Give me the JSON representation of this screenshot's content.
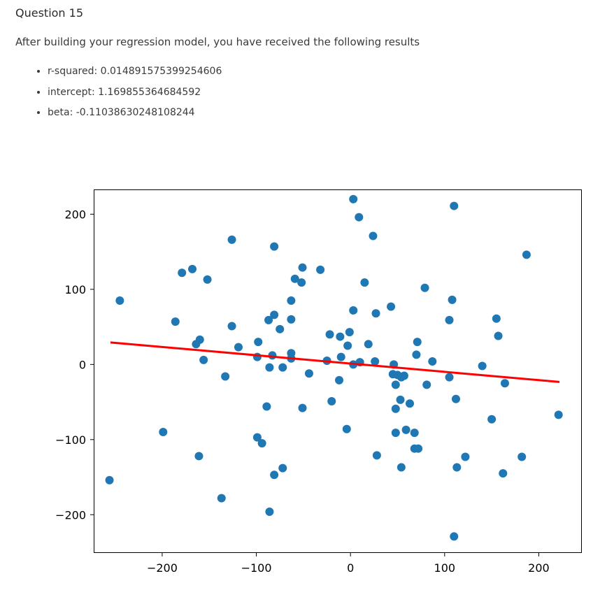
{
  "question": {
    "title": "Question 15",
    "text": "After building your regression model, you have received the following results",
    "results": [
      "r-squared: 0.014891575399254606",
      "intercept: 1.169855364684592",
      "beta: -0.11038630248108244"
    ]
  },
  "chart_data": {
    "type": "scatter",
    "title": "",
    "xlabel": "",
    "ylabel": "",
    "xlim": [
      -272,
      245
    ],
    "ylim": [
      -250,
      232
    ],
    "xticks": [
      -200,
      -100,
      0,
      100,
      200
    ],
    "yticks": [
      -200,
      -100,
      0,
      100,
      200
    ],
    "xtick_labels": [
      "−200",
      "−100",
      "0",
      "100",
      "200"
    ],
    "ytick_labels": [
      "−200",
      "−100",
      "0",
      "100",
      "200"
    ],
    "grid": false,
    "point_color": "#1f77b4",
    "line_color": "#ff0000",
    "points": [
      [
        3,
        220
      ],
      [
        110,
        211
      ],
      [
        9,
        196
      ],
      [
        -126,
        166
      ],
      [
        24,
        171
      ],
      [
        -81,
        157
      ],
      [
        187,
        146
      ],
      [
        -51,
        129
      ],
      [
        -32,
        126
      ],
      [
        -168,
        127
      ],
      [
        -179,
        122
      ],
      [
        -152,
        113
      ],
      [
        -59,
        114
      ],
      [
        -52,
        109
      ],
      [
        15,
        109
      ],
      [
        79,
        102
      ],
      [
        -245,
        85
      ],
      [
        -63,
        85
      ],
      [
        108,
        86
      ],
      [
        43,
        77
      ],
      [
        3,
        72
      ],
      [
        27,
        68
      ],
      [
        -81,
        66
      ],
      [
        -87,
        59
      ],
      [
        -63,
        60
      ],
      [
        105,
        59
      ],
      [
        155,
        61
      ],
      [
        -186,
        57
      ],
      [
        -126,
        51
      ],
      [
        -75,
        47
      ],
      [
        -22,
        40
      ],
      [
        -11,
        37
      ],
      [
        -1,
        43
      ],
      [
        157,
        38
      ],
      [
        -160,
        33
      ],
      [
        -164,
        27
      ],
      [
        -98,
        30
      ],
      [
        -3,
        25
      ],
      [
        19,
        27
      ],
      [
        71,
        30
      ],
      [
        -119,
        23
      ],
      [
        -63,
        15
      ],
      [
        -83,
        12
      ],
      [
        -99,
        10
      ],
      [
        -10,
        10
      ],
      [
        -63,
        8
      ],
      [
        70,
        13
      ],
      [
        -156,
        6
      ],
      [
        -25,
        5
      ],
      [
        10,
        3
      ],
      [
        3,
        0
      ],
      [
        26,
        4
      ],
      [
        46,
        0
      ],
      [
        87,
        4
      ],
      [
        140,
        -2
      ],
      [
        -86,
        -4
      ],
      [
        -72,
        -4
      ],
      [
        -44,
        -12
      ],
      [
        45,
        -13
      ],
      [
        50,
        -14
      ],
      [
        54,
        -17
      ],
      [
        57,
        -15
      ],
      [
        105,
        -17
      ],
      [
        -133,
        -16
      ],
      [
        -12,
        -21
      ],
      [
        48,
        -27
      ],
      [
        81,
        -27
      ],
      [
        164,
        -25
      ],
      [
        -20,
        -49
      ],
      [
        53,
        -47
      ],
      [
        63,
        -52
      ],
      [
        112,
        -46
      ],
      [
        -89,
        -56
      ],
      [
        -51,
        -58
      ],
      [
        48,
        -59
      ],
      [
        150,
        -73
      ],
      [
        221,
        -67
      ],
      [
        -199,
        -90
      ],
      [
        -4,
        -86
      ],
      [
        59,
        -87
      ],
      [
        48,
        -91
      ],
      [
        68,
        -91
      ],
      [
        -99,
        -97
      ],
      [
        -94,
        -105
      ],
      [
        68,
        -112
      ],
      [
        72,
        -112
      ],
      [
        -161,
        -122
      ],
      [
        28,
        -121
      ],
      [
        122,
        -123
      ],
      [
        182,
        -123
      ],
      [
        54,
        -137
      ],
      [
        113,
        -137
      ],
      [
        -72,
        -138
      ],
      [
        -81,
        -147
      ],
      [
        162,
        -145
      ],
      [
        -256,
        -154
      ],
      [
        -137,
        -178
      ],
      [
        -86,
        -196
      ],
      [
        110,
        -229
      ]
    ],
    "regression_line": {
      "x": [
        -255,
        222
      ],
      "y": [
        29.3,
        -23.3
      ]
    }
  }
}
